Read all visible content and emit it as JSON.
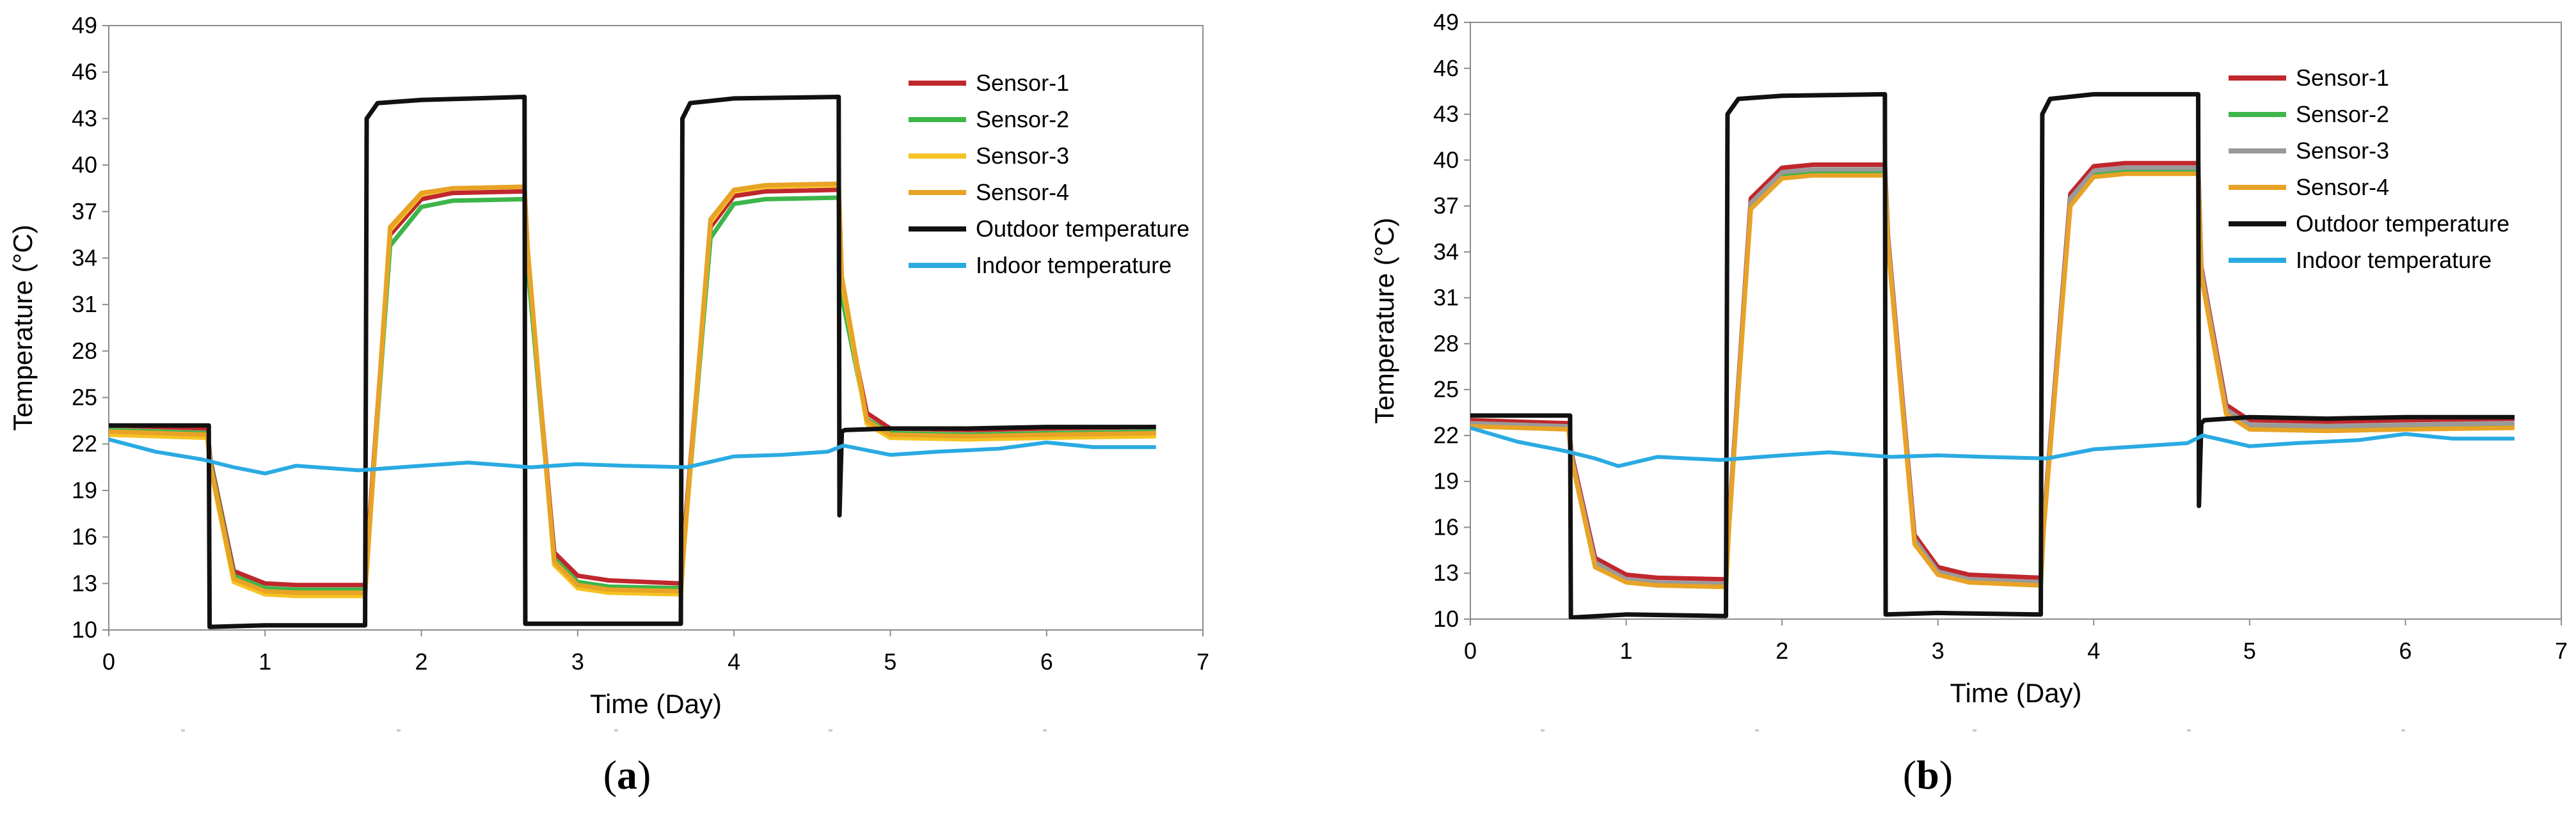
{
  "chart_data": [
    {
      "type": "line",
      "panel": "a",
      "caption_open": "(",
      "caption_letter": "a",
      "caption_close": ")",
      "xlabel": "Time (Day)",
      "ylabel": "Temperature (°C)",
      "xlim": [
        0,
        7
      ],
      "ylim": [
        10,
        49
      ],
      "xticks": [
        0,
        1,
        2,
        3,
        4,
        5,
        6,
        7
      ],
      "yticks": [
        10,
        13,
        16,
        19,
        22,
        25,
        28,
        31,
        34,
        37,
        40,
        43,
        46,
        49
      ],
      "grid": false,
      "legend_position": "top-right",
      "series": [
        {
          "name": "Sensor-1",
          "color": "#c0272d",
          "x": [
            0,
            0.63,
            0.65,
            0.8,
            1.0,
            1.2,
            1.64,
            1.66,
            1.8,
            2.0,
            2.2,
            2.66,
            2.68,
            2.85,
            3.0,
            3.2,
            3.66,
            3.68,
            3.85,
            4.0,
            4.2,
            4.67,
            4.69,
            4.85,
            5.0,
            5.5,
            6.0,
            6.7
          ],
          "y": [
            23.2,
            23.0,
            21.0,
            13.8,
            13.0,
            12.9,
            12.9,
            16.0,
            35.5,
            37.8,
            38.2,
            38.3,
            34.0,
            15.0,
            13.5,
            13.2,
            13.0,
            16.0,
            36.0,
            38.0,
            38.3,
            38.4,
            32.0,
            24.0,
            23.0,
            22.9,
            23.0,
            23.1
          ]
        },
        {
          "name": "Sensor-2",
          "color": "#3db54a",
          "x": [
            0,
            0.63,
            0.65,
            0.8,
            1.0,
            1.2,
            1.64,
            1.66,
            1.8,
            2.0,
            2.2,
            2.66,
            2.68,
            2.85,
            3.0,
            3.2,
            3.66,
            3.68,
            3.85,
            4.0,
            4.2,
            4.67,
            4.69,
            4.85,
            5.0,
            5.5,
            6.0,
            6.7
          ],
          "y": [
            22.9,
            22.7,
            20.8,
            13.5,
            12.7,
            12.6,
            12.6,
            15.5,
            34.8,
            37.3,
            37.7,
            37.8,
            33.5,
            14.6,
            13.1,
            12.8,
            12.7,
            15.5,
            35.3,
            37.5,
            37.8,
            37.9,
            31.5,
            23.6,
            22.7,
            22.6,
            22.7,
            22.8
          ]
        },
        {
          "name": "Sensor-3",
          "color": "#f5c322",
          "x": [
            0,
            0.63,
            0.65,
            0.8,
            1.0,
            1.2,
            1.64,
            1.66,
            1.8,
            2.0,
            2.2,
            2.66,
            2.68,
            2.85,
            3.0,
            3.2,
            3.66,
            3.68,
            3.85,
            4.0,
            4.2,
            4.67,
            4.69,
            4.85,
            5.0,
            5.5,
            6.0,
            6.7
          ],
          "y": [
            22.6,
            22.4,
            20.5,
            13.1,
            12.3,
            12.2,
            12.2,
            15.2,
            35.8,
            38.1,
            38.5,
            38.6,
            34.5,
            14.2,
            12.7,
            12.4,
            12.3,
            15.3,
            36.3,
            38.3,
            38.6,
            38.7,
            32.5,
            23.3,
            22.4,
            22.3,
            22.4,
            22.5
          ]
        },
        {
          "name": "Sensor-4",
          "color": "#e8a326",
          "x": [
            0,
            0.63,
            0.65,
            0.8,
            1.0,
            1.2,
            1.64,
            1.66,
            1.8,
            2.0,
            2.2,
            2.66,
            2.68,
            2.85,
            3.0,
            3.2,
            3.66,
            3.68,
            3.85,
            4.0,
            4.2,
            4.67,
            4.69,
            4.85,
            5.0,
            5.5,
            6.0,
            6.7
          ],
          "y": [
            22.8,
            22.6,
            20.6,
            13.3,
            12.5,
            12.4,
            12.4,
            15.4,
            36.0,
            38.2,
            38.5,
            38.6,
            34.6,
            14.4,
            12.9,
            12.6,
            12.5,
            15.5,
            36.5,
            38.4,
            38.7,
            38.8,
            32.8,
            23.5,
            22.6,
            22.5,
            22.6,
            22.7
          ]
        },
        {
          "name": "Outdoor temperature",
          "color": "#111111",
          "x": [
            0,
            0.64,
            0.645,
            1.0,
            1.64,
            1.65,
            1.72,
            2.0,
            2.66,
            2.665,
            3.0,
            3.66,
            3.67,
            3.72,
            4.0,
            4.67,
            4.675,
            4.69,
            4.71,
            5.0,
            5.5,
            6.0,
            6.7
          ],
          "y": [
            23.2,
            23.2,
            10.2,
            10.3,
            10.3,
            43.0,
            44.0,
            44.2,
            44.4,
            10.4,
            10.4,
            10.4,
            43.0,
            44.0,
            44.3,
            44.4,
            17.4,
            22.8,
            22.9,
            23.0,
            23.0,
            23.1,
            23.1
          ]
        },
        {
          "name": "Indoor temperature",
          "color": "#2aaae2",
          "x": [
            0,
            0.3,
            0.6,
            0.8,
            1.0,
            1.2,
            1.6,
            2.0,
            2.3,
            2.7,
            3.0,
            3.3,
            3.7,
            4.0,
            4.3,
            4.6,
            4.7,
            5.0,
            5.3,
            5.7,
            6.0,
            6.3,
            6.7
          ],
          "y": [
            22.3,
            21.5,
            21.0,
            20.5,
            20.1,
            20.6,
            20.3,
            20.6,
            20.8,
            20.5,
            20.7,
            20.6,
            20.5,
            21.2,
            21.3,
            21.5,
            21.9,
            21.3,
            21.5,
            21.7,
            22.1,
            21.8,
            21.8
          ]
        }
      ]
    },
    {
      "type": "line",
      "panel": "b",
      "caption_open": "(",
      "caption_letter": "b",
      "caption_close": ")",
      "xlabel": "Time (Day)",
      "ylabel": "Temperature (°C)",
      "xlim": [
        0,
        7
      ],
      "ylim": [
        10,
        49
      ],
      "xticks": [
        0,
        1,
        2,
        3,
        4,
        5,
        6,
        7
      ],
      "yticks": [
        10,
        13,
        16,
        19,
        22,
        25,
        28,
        31,
        34,
        37,
        40,
        43,
        46,
        49
      ],
      "grid": false,
      "legend_position": "top-right",
      "series": [
        {
          "name": "Sensor-1",
          "color": "#c0272d",
          "x": [
            0,
            0.63,
            0.65,
            0.8,
            1.0,
            1.2,
            1.64,
            1.66,
            1.8,
            2.0,
            2.2,
            2.66,
            2.68,
            2.85,
            3.0,
            3.2,
            3.66,
            3.68,
            3.85,
            4.0,
            4.2,
            4.67,
            4.69,
            4.85,
            5.0,
            5.5,
            6.0,
            6.7
          ],
          "y": [
            23.0,
            22.8,
            20.8,
            14.0,
            12.9,
            12.7,
            12.6,
            16.5,
            37.5,
            39.5,
            39.7,
            39.7,
            35.0,
            15.5,
            13.4,
            12.9,
            12.7,
            16.5,
            37.8,
            39.6,
            39.8,
            39.8,
            33.0,
            24.0,
            23.0,
            22.9,
            23.0,
            23.1
          ]
        },
        {
          "name": "Sensor-2",
          "color": "#3db54a",
          "x": [
            0,
            0.63,
            0.65,
            0.8,
            1.0,
            1.2,
            1.64,
            1.66,
            1.8,
            2.0,
            2.2,
            2.66,
            2.68,
            2.85,
            3.0,
            3.2,
            3.66,
            3.68,
            3.85,
            4.0,
            4.2,
            4.67,
            4.69,
            4.85,
            5.0,
            5.5,
            6.0,
            6.7
          ],
          "y": [
            22.7,
            22.5,
            20.5,
            13.6,
            12.5,
            12.3,
            12.2,
            16.2,
            37.0,
            39.0,
            39.2,
            39.2,
            34.6,
            15.1,
            13.0,
            12.5,
            12.3,
            16.2,
            37.3,
            39.1,
            39.3,
            39.3,
            32.6,
            23.6,
            22.6,
            22.5,
            22.6,
            22.7
          ]
        },
        {
          "name": "Sensor-3",
          "color": "#9a9a9a",
          "x": [
            0,
            0.63,
            0.65,
            0.8,
            1.0,
            1.2,
            1.64,
            1.66,
            1.8,
            2.0,
            2.2,
            2.66,
            2.68,
            2.85,
            3.0,
            3.2,
            3.66,
            3.68,
            3.85,
            4.0,
            4.2,
            4.67,
            4.69,
            4.85,
            5.0,
            5.5,
            6.0,
            6.7
          ],
          "y": [
            22.8,
            22.6,
            20.6,
            13.7,
            12.6,
            12.4,
            12.3,
            16.3,
            37.2,
            39.2,
            39.4,
            39.4,
            34.8,
            15.2,
            13.1,
            12.6,
            12.4,
            16.3,
            37.5,
            39.3,
            39.5,
            39.5,
            32.8,
            23.7,
            22.7,
            22.6,
            22.7,
            22.8
          ]
        },
        {
          "name": "Sensor-4",
          "color": "#e8a326",
          "x": [
            0,
            0.63,
            0.65,
            0.8,
            1.0,
            1.2,
            1.64,
            1.66,
            1.8,
            2.0,
            2.2,
            2.66,
            2.68,
            2.85,
            3.0,
            3.2,
            3.66,
            3.68,
            3.85,
            4.0,
            4.2,
            4.67,
            4.69,
            4.85,
            5.0,
            5.5,
            6.0,
            6.7
          ],
          "y": [
            22.6,
            22.4,
            20.4,
            13.4,
            12.4,
            12.2,
            12.1,
            16.0,
            36.8,
            38.8,
            39.0,
            39.0,
            34.4,
            14.9,
            12.9,
            12.4,
            12.2,
            16.0,
            37.0,
            38.9,
            39.1,
            39.1,
            32.4,
            23.4,
            22.4,
            22.3,
            22.4,
            22.5
          ]
        },
        {
          "name": "Outdoor temperature",
          "color": "#111111",
          "x": [
            0,
            0.64,
            0.645,
            1.0,
            1.64,
            1.65,
            1.72,
            2.0,
            2.66,
            2.665,
            3.0,
            3.66,
            3.67,
            3.72,
            4.0,
            4.67,
            4.675,
            4.69,
            4.71,
            5.0,
            5.5,
            6.0,
            6.7
          ],
          "y": [
            23.3,
            23.3,
            10.1,
            10.3,
            10.2,
            43.0,
            44.0,
            44.2,
            44.3,
            10.3,
            10.4,
            10.3,
            43.0,
            44.0,
            44.3,
            44.3,
            17.4,
            22.8,
            23.0,
            23.2,
            23.1,
            23.2,
            23.2
          ]
        },
        {
          "name": "Indoor temperature",
          "color": "#2aaae2",
          "x": [
            0,
            0.3,
            0.6,
            0.8,
            0.95,
            1.2,
            1.6,
            2.0,
            2.3,
            2.7,
            3.0,
            3.3,
            3.7,
            4.0,
            4.3,
            4.6,
            4.7,
            5.0,
            5.3,
            5.7,
            6.0,
            6.3,
            6.7
          ],
          "y": [
            22.5,
            21.6,
            21.0,
            20.5,
            20.0,
            20.6,
            20.4,
            20.7,
            20.9,
            20.6,
            20.7,
            20.6,
            20.5,
            21.1,
            21.3,
            21.5,
            22.0,
            21.3,
            21.5,
            21.7,
            22.1,
            21.8,
            21.8
          ]
        }
      ]
    }
  ]
}
